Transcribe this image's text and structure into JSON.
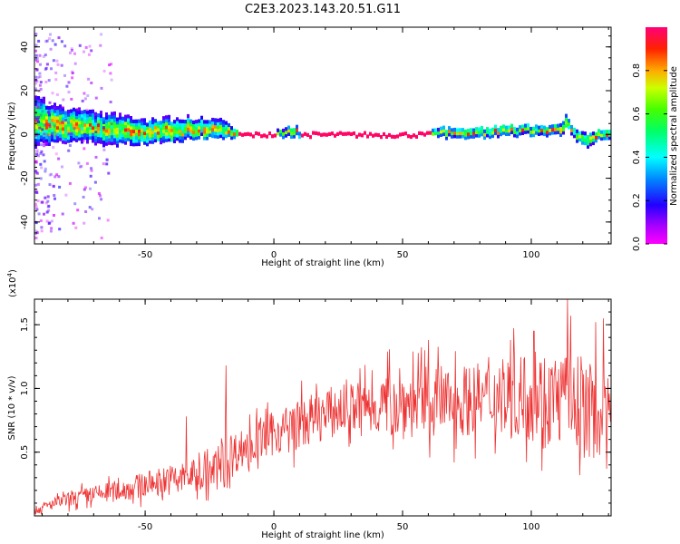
{
  "figure": {
    "title": "C2E3.2023.143.20.51.G11"
  },
  "chart_data": [
    {
      "type": "heatmap",
      "xlabel": "Height of straight line (km)",
      "ylabel": "Frequency (Hz)",
      "xlim": [
        -93,
        131
      ],
      "ylim": [
        -50,
        49
      ],
      "xticks": [
        -50,
        0,
        50,
        100
      ],
      "yticks": [
        -40,
        -20,
        0,
        20,
        40
      ],
      "colorbar": {
        "label": "Normalized spectral amplitude",
        "range": [
          0,
          1
        ],
        "ticks": [
          0.0,
          0.2,
          0.4,
          0.6,
          0.8
        ],
        "tick_labels": [
          "0.0",
          "0.2",
          "0.4",
          "0.6",
          "0.8"
        ]
      },
      "centerline": {
        "x": [
          -93,
          -88,
          -80,
          -70,
          -60,
          -50,
          -40,
          -30,
          -20,
          -14,
          -10,
          0,
          5,
          8,
          10,
          20,
          30,
          40,
          50,
          60,
          65,
          70,
          80,
          90,
          100,
          110,
          113,
          115,
          120,
          125,
          131
        ],
        "y": [
          7,
          5,
          4,
          3,
          2,
          1,
          2,
          3,
          2,
          0,
          0,
          0,
          1,
          2,
          0,
          0,
          0,
          0,
          0,
          0,
          1,
          1,
          1,
          2,
          2,
          2,
          5,
          2,
          -3,
          0,
          1
        ],
        "spread_hz": [
          10,
          8,
          7,
          6,
          6,
          5,
          5,
          4,
          4,
          1,
          1,
          1,
          2,
          2,
          1,
          1,
          1,
          1,
          1,
          1,
          2,
          2,
          2,
          2,
          2,
          2,
          3,
          2,
          3,
          2,
          2
        ]
      },
      "grid": false
    },
    {
      "type": "line",
      "xlabel": "Height of straight line (km)",
      "ylabel": "SNR (10 * v/v)",
      "y_scale_label": "(x10",
      "y_scale_exponent": "4",
      "y_scale_suffix": ")",
      "xlim": [
        -93,
        131
      ],
      "ylim": [
        0,
        1.7
      ],
      "xticks": [
        -50,
        0,
        50,
        100
      ],
      "yticks": [
        0.5,
        1.0,
        1.5
      ],
      "ytick_labels": [
        "0.5",
        "1.0",
        "1.5"
      ],
      "series": [
        {
          "color": "#ee3333",
          "envelope": {
            "x": [
              -93,
              -85,
              -75,
              -65,
              -55,
              -45,
              -35,
              -25,
              -20,
              -17,
              -15,
              -10,
              -5,
              0,
              10,
              20,
              30,
              40,
              50,
              60,
              70,
              80,
              90,
              100,
              110,
              115,
              120,
              125,
              131
            ],
            "mean": [
              0.04,
              0.1,
              0.15,
              0.18,
              0.22,
              0.27,
              0.3,
              0.33,
              0.4,
              0.45,
              0.5,
              0.55,
              0.6,
              0.65,
              0.72,
              0.8,
              0.85,
              0.87,
              0.88,
              0.9,
              0.9,
              0.92,
              0.93,
              0.95,
              0.93,
              0.9,
              0.85,
              0.8,
              0.75
            ],
            "amplitude": [
              0.04,
              0.06,
              0.08,
              0.1,
              0.12,
              0.14,
              0.16,
              0.17,
              0.25,
              0.3,
              0.2,
              0.2,
              0.2,
              0.22,
              0.25,
              0.25,
              0.25,
              0.3,
              0.35,
              0.35,
              0.35,
              0.35,
              0.4,
              0.45,
              0.45,
              0.5,
              0.5,
              0.45,
              0.4
            ]
          },
          "peaks": [
            {
              "x": -18.5,
              "y": 1.18
            },
            {
              "x": -34,
              "y": 0.78
            },
            {
              "x": 114,
              "y": 1.7
            },
            {
              "x": 101,
              "y": 1.45
            },
            {
              "x": 125,
              "y": 1.52
            },
            {
              "x": 128,
              "y": 1.55
            },
            {
              "x": 60,
              "y": 1.38
            },
            {
              "x": 92,
              "y": 1.38
            }
          ]
        }
      ],
      "grid": false
    }
  ]
}
